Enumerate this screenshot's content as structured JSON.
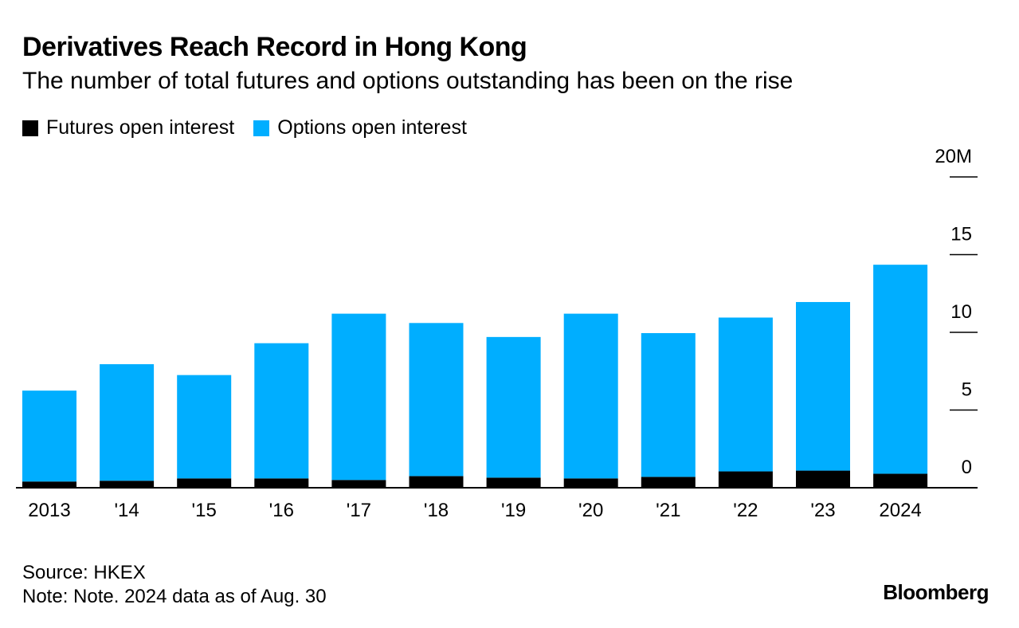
{
  "chart_data": {
    "type": "bar",
    "stacked": true,
    "title": "Derivatives Reach Record in Hong Kong",
    "subtitle": "The number of total futures and options outstanding has been on the rise",
    "categories": [
      "2013",
      "'14",
      "'15",
      "'16",
      "'17",
      "'18",
      "'19",
      "'20",
      "'21",
      "'22",
      "'23",
      "2024"
    ],
    "series": [
      {
        "name": "Futures open interest",
        "color": "#000000",
        "values": [
          0.4,
          0.45,
          0.6,
          0.6,
          0.5,
          0.75,
          0.65,
          0.6,
          0.7,
          1.05,
          1.1,
          0.9
        ]
      },
      {
        "name": "Options open interest",
        "color": "#00aeff",
        "values": [
          5.85,
          7.5,
          6.65,
          8.7,
          10.7,
          9.85,
          9.05,
          10.6,
          9.25,
          9.9,
          10.85,
          13.45
        ]
      }
    ],
    "ylim": [
      0,
      20
    ],
    "yticks": [
      0,
      5,
      10,
      15,
      20
    ],
    "ytick_labels": [
      "0",
      "5",
      "10",
      "15",
      "20M"
    ],
    "xlabel": "",
    "ylabel": "",
    "legend_position": "top-left",
    "source": "Source: HKEX",
    "note": "Note: Note. 2024 data as of Aug. 30"
  },
  "brand": "Bloomberg"
}
